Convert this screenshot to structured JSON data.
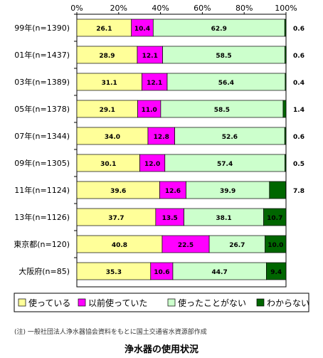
{
  "chart_data": {
    "type": "bar",
    "stacked": true,
    "orientation": "horizontal",
    "xlim": [
      0,
      100
    ],
    "xticks": [
      "0%",
      "20%",
      "40%",
      "60%",
      "80%",
      "100%"
    ],
    "categories": [
      "99年(n=1390)",
      "01年(n=1437)",
      "03年(n=1389)",
      "05年(n=1378)",
      "07年(n=1344)",
      "09年(n=1305)",
      "11年(n=1124)",
      "13年(n=1126)",
      "東京都(n=120)",
      "大阪府(n=85)"
    ],
    "series": [
      {
        "name": "使っている",
        "color": "#FFFF99",
        "values": [
          26.1,
          28.9,
          31.1,
          29.1,
          34.0,
          30.1,
          39.6,
          37.7,
          40.8,
          35.3
        ]
      },
      {
        "name": "以前使っていた",
        "color": "#FF00FF",
        "values": [
          10.4,
          12.1,
          12.1,
          11.0,
          12.8,
          12.0,
          12.6,
          13.5,
          22.5,
          10.6
        ]
      },
      {
        "name": "使ったことがない",
        "color": "#CCFFCC",
        "values": [
          62.9,
          58.5,
          56.4,
          58.5,
          52.6,
          57.4,
          39.9,
          38.1,
          26.7,
          44.7
        ]
      },
      {
        "name": "わからない",
        "color": "#006600",
        "values": [
          0.6,
          0.6,
          0.4,
          1.4,
          0.6,
          0.5,
          7.8,
          10.7,
          10.0,
          9.4
        ]
      }
    ],
    "value_labels": [
      [
        "26.1",
        "10.4",
        "62.9",
        "0.6"
      ],
      [
        "28.9",
        "12.1",
        "58.5",
        "0.6"
      ],
      [
        "31.1",
        "12.1",
        "56.4",
        "0.4"
      ],
      [
        "29.1",
        "11.0",
        "58.5",
        "1.4"
      ],
      [
        "34.0",
        "12.8",
        "52.6",
        "0.6"
      ],
      [
        "30.1",
        "12.0",
        "57.4",
        "0.5"
      ],
      [
        "39.6",
        "12.6",
        "39.9",
        "7.8"
      ],
      [
        "37.7",
        "13.5",
        "38.1",
        "10.7"
      ],
      [
        "40.8",
        "22.5",
        "26.7",
        "10.0"
      ],
      [
        "35.3",
        "10.6",
        "44.7",
        "9.4"
      ]
    ],
    "legend_position": "bottom",
    "grid": false,
    "note": "(注) 一般社団法人浄水器協会資料をもとに国土交通省水資源部作成",
    "caption": "浄水器の使用状況"
  }
}
